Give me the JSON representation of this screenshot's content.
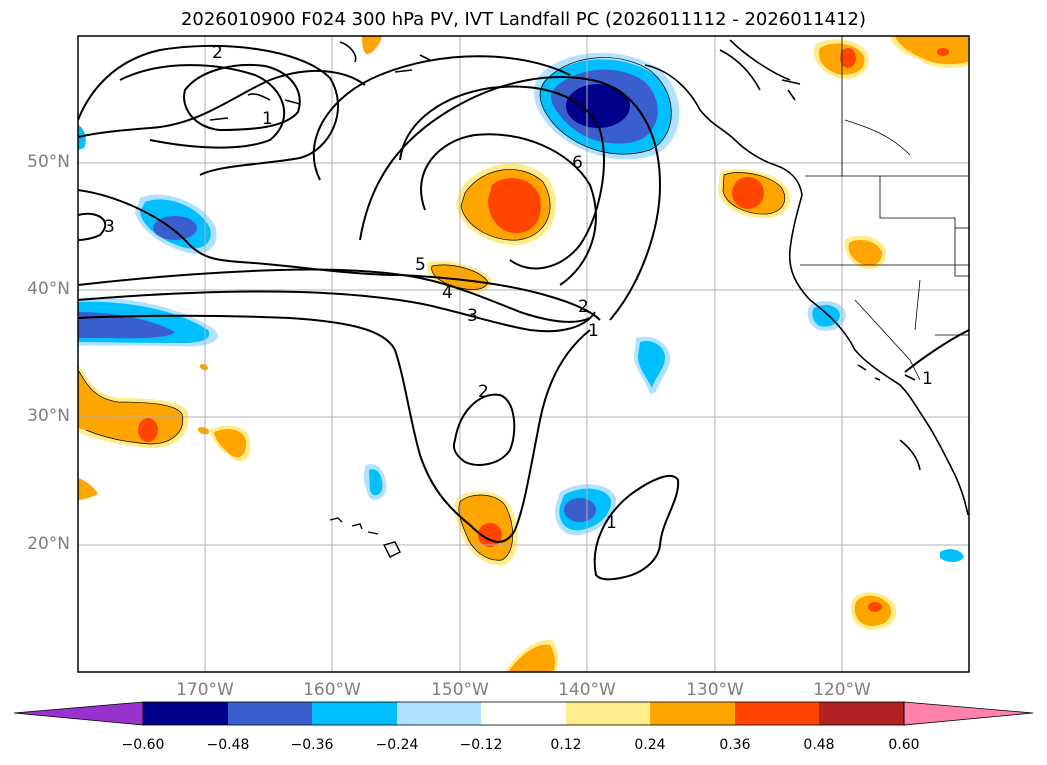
{
  "title": "2026010900 F024 300 hPa PV, IVT Landfall PC (2026011112 - 2026011412)",
  "map": {
    "lat_labels": [
      "50°N",
      "40°N",
      "30°N",
      "20°N"
    ],
    "lon_labels": [
      "170°W",
      "160°W",
      "150°W",
      "140°W",
      "130°W",
      "120°W"
    ],
    "pv_contour_labels": [
      "2",
      "1",
      "6",
      "5",
      "4",
      "3",
      "2",
      "1",
      "2",
      "1",
      "3",
      "1"
    ]
  },
  "colorbar": {
    "tick_labels": [
      "−0.60",
      "−0.48",
      "−0.36",
      "−0.24",
      "−0.12",
      "0.12",
      "0.24",
      "0.36",
      "0.48",
      "0.60"
    ],
    "colors": [
      "#9932cc",
      "#00008b",
      "#3a5fcd",
      "#00bfff",
      "#b0e2ff",
      "#ffffff",
      "#ffec8b",
      "#ffa500",
      "#ff4500",
      "#b22222",
      "#ff82ab"
    ]
  },
  "colors": {
    "gridline": "#b0b0b0",
    "label_gray": "#7f7f7f"
  }
}
